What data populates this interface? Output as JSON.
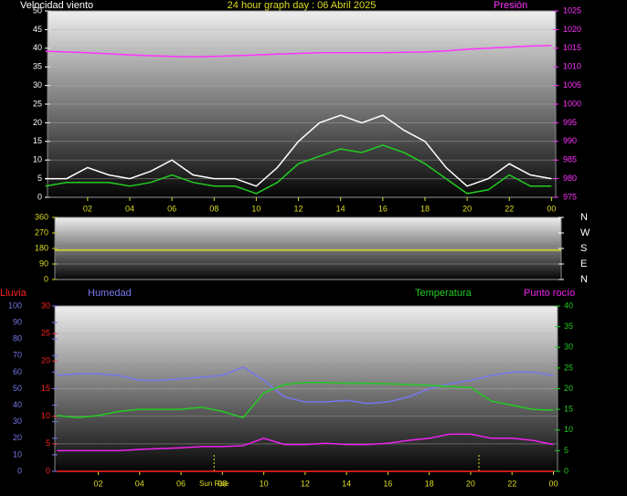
{
  "chart_data": [
    {
      "type": "line",
      "title": "24 hour graph day : 06 Abril 2025",
      "x": [
        0,
        1,
        2,
        3,
        4,
        5,
        6,
        7,
        8,
        9,
        10,
        11,
        12,
        13,
        14,
        15,
        16,
        17,
        18,
        19,
        20,
        21,
        22,
        23,
        24
      ],
      "xlim": [
        0.1,
        24.2
      ],
      "xticks": [
        {
          "value": 2,
          "label": "02"
        },
        {
          "value": 4,
          "label": "04"
        },
        {
          "value": 6,
          "label": "06"
        },
        {
          "value": 8,
          "label": "08"
        },
        10,
        12,
        14,
        16,
        18,
        20,
        22,
        {
          "value": 24,
          "label": "00"
        }
      ],
      "ylim": [
        0,
        50
      ],
      "yticks": [
        0,
        5,
        10,
        15,
        20,
        25,
        30,
        35,
        40,
        45,
        50
      ],
      "y2lim": [
        975,
        1025
      ],
      "y2ticks": [
        975,
        980,
        985,
        990,
        995,
        1000,
        1005,
        1010,
        1015,
        1020,
        1025
      ],
      "grid": true,
      "series": [
        {
          "name": "Velocidad viento",
          "color": "#ffffff",
          "values": [
            5,
            5,
            8,
            6,
            5,
            7,
            10,
            6,
            5,
            5,
            3,
            8,
            15,
            20,
            22,
            20,
            22,
            18,
            15,
            8,
            3,
            5,
            9,
            6,
            5
          ]
        },
        {
          "color": "#22cc22",
          "values": [
            3,
            4,
            4,
            4,
            3,
            4,
            6,
            4,
            3,
            3,
            1,
            4,
            9,
            11,
            13,
            12,
            14,
            12,
            9,
            5,
            1,
            2,
            6,
            3,
            3
          ]
        },
        {
          "name": "Presión",
          "color": "#ff33ff",
          "axis": "y2",
          "values": [
            1014.2,
            1014,
            1013.8,
            1013.5,
            1013.2,
            1013,
            1012.8,
            1012.7,
            1012.8,
            1013,
            1013.2,
            1013.4,
            1013.6,
            1013.8,
            1013.8,
            1013.8,
            1013.8,
            1013.9,
            1014,
            1014.3,
            1014.7,
            1015,
            1015.3,
            1015.6,
            1015.7
          ]
        }
      ]
    },
    {
      "type": "line",
      "x": [
        0,
        1,
        2,
        3,
        4,
        5,
        6,
        7,
        8,
        9,
        10,
        11,
        12,
        13,
        14,
        15,
        16,
        17,
        18,
        19,
        20,
        21,
        22,
        23,
        24
      ],
      "xlim": [
        0,
        24
      ],
      "ylim": [
        0,
        360
      ],
      "yticks": [
        0,
        90,
        180,
        270,
        360
      ],
      "y2lim": [
        0,
        360
      ],
      "y2ticks": [
        {
          "value": 360,
          "label": "N"
        },
        {
          "value": 270,
          "label": "W"
        },
        {
          "value": 180,
          "label": "S"
        },
        {
          "value": 90,
          "label": "E"
        },
        {
          "value": 0,
          "label": "N"
        }
      ],
      "grid": true,
      "series": [
        {
          "color": "#dddd22",
          "values": [
            170,
            170,
            170,
            170,
            170,
            170,
            170,
            170,
            170,
            170,
            170,
            170,
            170,
            170,
            170,
            170,
            170,
            170,
            170,
            170,
            170,
            170,
            170,
            170,
            170
          ]
        }
      ]
    },
    {
      "type": "line",
      "x": [
        0,
        1,
        2,
        3,
        4,
        5,
        6,
        7,
        8,
        9,
        10,
        11,
        12,
        13,
        14,
        15,
        16,
        17,
        18,
        19,
        20,
        21,
        22,
        23,
        24
      ],
      "xlim": [
        -0.1,
        24.2
      ],
      "xticks": [
        {
          "value": 2,
          "label": "02"
        },
        {
          "value": 4,
          "label": "04"
        },
        {
          "value": 6,
          "label": "06"
        },
        {
          "value": 8,
          "label": "08"
        },
        10,
        12,
        14,
        16,
        18,
        20,
        22,
        {
          "value": 24,
          "label": "00"
        }
      ],
      "ylim": [
        0,
        30
      ],
      "yticks": [
        0,
        5,
        10,
        15,
        20,
        25,
        30
      ],
      "y2lim": [
        0,
        40
      ],
      "y2ticks": [
        0,
        5,
        10,
        15,
        20,
        25,
        30,
        35,
        40
      ],
      "y3lim": [
        0,
        100
      ],
      "y3ticks": [
        0,
        10,
        20,
        30,
        40,
        50,
        60,
        70,
        80,
        90,
        100
      ],
      "grid": true,
      "markers": [
        {
          "label": "Sun Rise",
          "x": 7.6
        },
        {
          "x": 20.4
        }
      ],
      "series": [
        {
          "name": "Lluvia",
          "color": "#ff2020",
          "values": [
            0,
            0,
            0,
            0,
            0,
            0,
            0,
            0,
            0,
            0,
            0,
            0,
            0,
            0,
            0,
            0,
            0,
            0,
            0,
            0,
            0,
            0,
            0,
            0,
            0
          ]
        },
        {
          "name": "Humedad",
          "color": "#7777ee",
          "axis": "y3",
          "values": [
            58,
            59,
            59,
            58,
            55,
            55,
            56,
            57,
            58,
            63,
            55,
            45,
            42,
            42,
            43,
            41,
            42,
            45,
            50,
            53,
            55,
            58,
            60,
            60,
            58
          ]
        },
        {
          "name": "Temperatura",
          "color": "#22cc22",
          "axis": "y2",
          "values": [
            13.5,
            13,
            13.5,
            14.5,
            15,
            15,
            15,
            15.5,
            14.5,
            13,
            19,
            21,
            21.5,
            21.5,
            21.3,
            21.3,
            21.2,
            21,
            20.8,
            20.5,
            20.3,
            17,
            16,
            15,
            14.8
          ]
        },
        {
          "name": "Punto rocío",
          "color": "#ee22ee",
          "axis": "y2",
          "values": [
            5,
            5,
            5,
            5,
            5.3,
            5.5,
            5.7,
            6,
            6,
            6.2,
            8,
            6.5,
            6.5,
            6.8,
            6.5,
            6.5,
            6.8,
            7.5,
            8,
            9,
            9,
            8,
            8,
            7.5,
            6.5
          ]
        }
      ]
    }
  ]
}
